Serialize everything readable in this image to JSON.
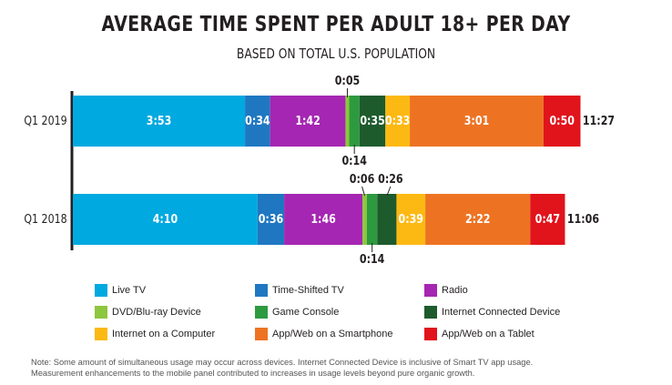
{
  "header": {
    "title": "AVERAGE TIME SPENT PER ADULT 18+ PER DAY",
    "subtitle": "BASED ON TOTAL U.S. POPULATION"
  },
  "footnote": {
    "line1": "Note: Some amount of simultaneous usage may occur across devices. Internet Connected Device is inclusive of Smart TV app usage.",
    "line2": "Measurement enhancements to the mobile panel contributed to increases in usage levels beyond pure organic growth."
  },
  "chart_data": {
    "type": "bar",
    "orientation": "horizontal",
    "stacked": true,
    "title": "AVERAGE TIME SPENT PER ADULT 18+ PER DAY",
    "subtitle": "BASED ON TOTAL U.S. POPULATION",
    "units": "hours:minutes",
    "categories": [
      "Q1 2019",
      "Q1 2018"
    ],
    "totals": [
      "11:27",
      "11:06"
    ],
    "legend_position": "bottom",
    "series": [
      {
        "name": "Live TV",
        "color": "#00a9e0",
        "values": [
          "3:53",
          "4:10"
        ],
        "minutes": [
          233,
          250
        ]
      },
      {
        "name": "Time-Shifted TV",
        "color": "#1f77c1",
        "values": [
          "0:34",
          "0:36"
        ],
        "minutes": [
          34,
          36
        ]
      },
      {
        "name": "Radio",
        "color": "#a526b2",
        "values": [
          "1:42",
          "1:46"
        ],
        "minutes": [
          102,
          106
        ]
      },
      {
        "name": "DVD/Blu-ray Device",
        "color": "#8dc63f",
        "values": [
          "0:05",
          "0:06"
        ],
        "minutes": [
          5,
          6
        ]
      },
      {
        "name": "Game Console",
        "color": "#2e9a3f",
        "values": [
          "0:14",
          "0:14"
        ],
        "minutes": [
          14,
          14
        ]
      },
      {
        "name": "Internet Connected Device",
        "color": "#1d5b2d",
        "values": [
          "0:35",
          "0:26"
        ],
        "minutes": [
          35,
          26
        ]
      },
      {
        "name": "Internet on a Computer",
        "color": "#fdb913",
        "values": [
          "0:33",
          "0:39"
        ],
        "minutes": [
          33,
          39
        ]
      },
      {
        "name": "App/Web on a Smartphone",
        "color": "#ed7323",
        "values": [
          "3:01",
          "2:22"
        ],
        "minutes": [
          181,
          142
        ]
      },
      {
        "name": "App/Web on a Tablet",
        "color": "#e1131b",
        "values": [
          "0:50",
          "0:47"
        ],
        "minutes": [
          50,
          47
        ]
      }
    ]
  }
}
